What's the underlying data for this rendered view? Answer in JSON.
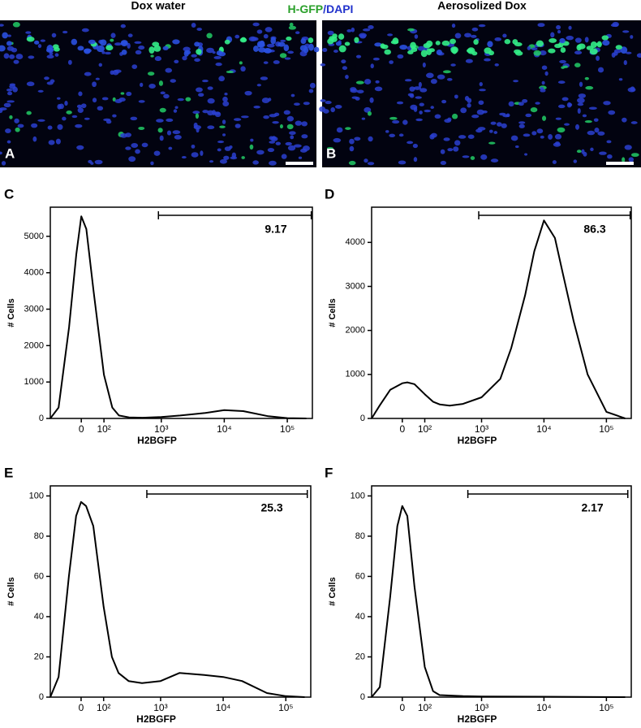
{
  "figure": {
    "images": [
      {
        "label": "A",
        "title": "Dox water"
      },
      {
        "label": "B",
        "title": "Aerosolized Dox"
      }
    ],
    "caption": [
      "H-GFP",
      "/DAPI"
    ]
  },
  "chart_data": [
    {
      "type": "line",
      "panel": "C",
      "xlabel": "H2BGFP",
      "ylabel": "# Cells",
      "color": "#000000",
      "xscale": "biexponential",
      "xlim": [
        -150,
        250000
      ],
      "ylim": [
        0,
        5800
      ],
      "yticks": [
        0,
        1000,
        2000,
        3000,
        4000,
        5000
      ],
      "xticks": [
        0,
        {
          "value": 100,
          "label": "10²"
        },
        {
          "value": 1000,
          "label": "10³"
        },
        {
          "value": 10000,
          "label": "10⁴"
        },
        {
          "value": 100000,
          "label": "10⁵"
        }
      ],
      "x": [
        -150,
        -100,
        -50,
        -20,
        0,
        20,
        50,
        100,
        150,
        200,
        300,
        500,
        1000,
        2000,
        5000,
        10000,
        20000,
        50000,
        100000,
        200000
      ],
      "values": [
        0,
        300,
        2500,
        4500,
        5550,
        5200,
        3500,
        1200,
        300,
        80,
        30,
        20,
        40,
        80,
        150,
        230,
        200,
        60,
        10,
        0
      ],
      "gate": {
        "range": [
          900,
          240000
        ],
        "value": 9.17
      }
    },
    {
      "type": "line",
      "panel": "D",
      "xlabel": "H2BGFP",
      "ylabel": "# Cells",
      "color": "#000000",
      "xscale": "biexponential",
      "xlim": [
        -150,
        250000
      ],
      "ylim": [
        0,
        4800
      ],
      "yticks": [
        0,
        1000,
        2000,
        3000,
        4000
      ],
      "xticks": [
        0,
        {
          "value": 100,
          "label": "10²"
        },
        {
          "value": 1000,
          "label": "10³"
        },
        {
          "value": 10000,
          "label": "10⁴"
        },
        {
          "value": 100000,
          "label": "10⁵"
        }
      ],
      "x": [
        -150,
        -100,
        -50,
        0,
        20,
        50,
        100,
        150,
        200,
        300,
        500,
        1000,
        2000,
        3000,
        5000,
        7000,
        10000,
        15000,
        20000,
        30000,
        50000,
        100000,
        200000
      ],
      "values": [
        0,
        300,
        650,
        800,
        820,
        780,
        550,
        380,
        320,
        290,
        330,
        480,
        900,
        1600,
        2800,
        3800,
        4500,
        4100,
        3300,
        2200,
        1000,
        150,
        0
      ],
      "gate": {
        "range": [
          900,
          240000
        ],
        "value": 86.3
      }
    },
    {
      "type": "line",
      "panel": "E",
      "xlabel": "H2BGFP",
      "ylabel": "# Cells",
      "color": "#000000",
      "xscale": "biexponential",
      "xlim": [
        -150,
        250000
      ],
      "ylim": [
        0,
        105
      ],
      "yticks": [
        0,
        20,
        40,
        60,
        80,
        100
      ],
      "xticks": [
        0,
        {
          "value": 100,
          "label": "10²"
        },
        {
          "value": 1000,
          "label": "10³"
        },
        {
          "value": 10000,
          "label": "10⁴"
        },
        {
          "value": 100000,
          "label": "10⁵"
        }
      ],
      "x": [
        -150,
        -100,
        -50,
        -20,
        0,
        20,
        50,
        100,
        150,
        200,
        300,
        500,
        1000,
        2000,
        5000,
        10000,
        20000,
        50000,
        100000,
        200000
      ],
      "values": [
        0,
        10,
        60,
        90,
        97,
        95,
        85,
        45,
        20,
        12,
        8,
        7,
        8,
        12,
        11,
        10,
        8,
        2,
        0.5,
        0
      ],
      "gate": {
        "range": [
          600,
          220000
        ],
        "value": 25.3
      }
    },
    {
      "type": "line",
      "panel": "F",
      "xlabel": "H2BGFP",
      "ylabel": "# Cells",
      "color": "#000000",
      "xscale": "biexponential",
      "xlim": [
        -150,
        250000
      ],
      "ylim": [
        0,
        105
      ],
      "yticks": [
        0,
        20,
        40,
        60,
        80,
        100
      ],
      "xticks": [
        0,
        {
          "value": 100,
          "label": "10²"
        },
        {
          "value": 1000,
          "label": "10³"
        },
        {
          "value": 10000,
          "label": "10⁴"
        },
        {
          "value": 100000,
          "label": "10⁵"
        }
      ],
      "x": [
        -150,
        -100,
        -50,
        -20,
        0,
        20,
        50,
        100,
        150,
        200,
        500,
        1000,
        10000,
        200000
      ],
      "values": [
        0,
        5,
        50,
        85,
        95,
        90,
        55,
        15,
        3,
        1,
        0.5,
        0.3,
        0.2,
        0
      ],
      "gate": {
        "range": [
          600,
          220000
        ],
        "value": 2.17
      }
    }
  ]
}
